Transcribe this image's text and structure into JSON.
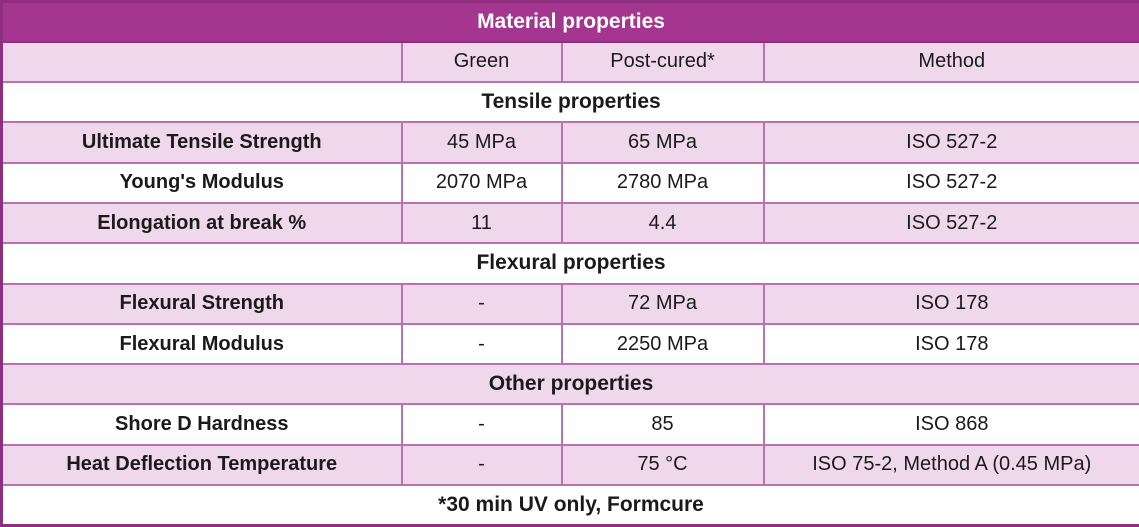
{
  "title": "Material properties",
  "header": {
    "property": "",
    "green": "Green",
    "post_cured": "Post-cured*",
    "method": "Method"
  },
  "sections": [
    {
      "label": "Tensile properties",
      "rows": [
        {
          "property": "Ultimate Tensile Strength",
          "green": "45 MPa",
          "post_cured": "65 MPa",
          "method": "ISO 527-2"
        },
        {
          "property": "Young's Modulus",
          "green": "2070 MPa",
          "post_cured": "2780 MPa",
          "method": "ISO 527-2"
        },
        {
          "property": "Elongation at break %",
          "green": "11",
          "post_cured": "4.4",
          "method": "ISO 527-2"
        }
      ]
    },
    {
      "label": "Flexural properties",
      "rows": [
        {
          "property": "Flexural Strength",
          "green": "-",
          "post_cured": "72 MPa",
          "method": "ISO 178"
        },
        {
          "property": "Flexural Modulus",
          "green": "-",
          "post_cured": "2250 MPa",
          "method": "ISO 178"
        }
      ]
    },
    {
      "label": "Other properties",
      "rows": [
        {
          "property": "Shore D Hardness",
          "green": "-",
          "post_cured": "85",
          "method": "ISO 868"
        },
        {
          "property": "Heat Deflection Temperature",
          "green": "-",
          "post_cured": "75 °C",
          "method": "ISO 75-2, Method A (0.45 MPa)"
        }
      ]
    }
  ],
  "footnote": "*30 min UV only, Formcure",
  "colors": {
    "header_bg": "#A5368F",
    "row_shade_bg": "#F0D8EC",
    "grid_border": "#B873AE",
    "outer_border": "#8F2D7E",
    "title_text": "#FFFFFF",
    "body_text": "#1A1A1A"
  }
}
